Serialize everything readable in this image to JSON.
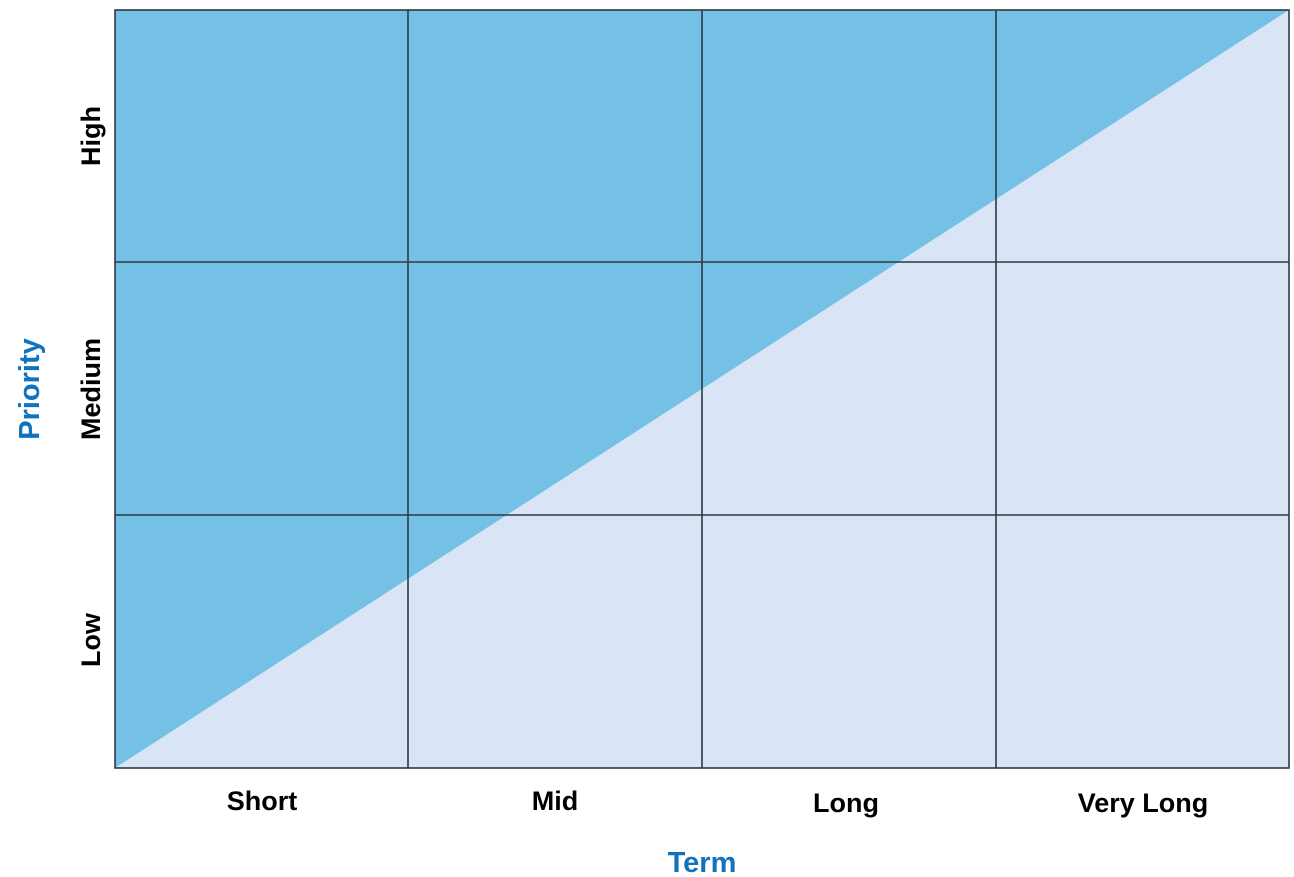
{
  "diagram": {
    "colors": {
      "upper_region": "#74c1e5",
      "lower_region": "#d9e4f7",
      "grid": "#2e3a40",
      "axis_title": "#1273bd",
      "labels": "#000000"
    },
    "x_axis": {
      "title": "Term",
      "categories": [
        "Short",
        "Mid",
        "Long",
        "Very Long"
      ]
    },
    "y_axis": {
      "title": "Priority",
      "categories": [
        "Low",
        "Medium",
        "High"
      ]
    },
    "diagonal": "bottom-left to top-right"
  }
}
